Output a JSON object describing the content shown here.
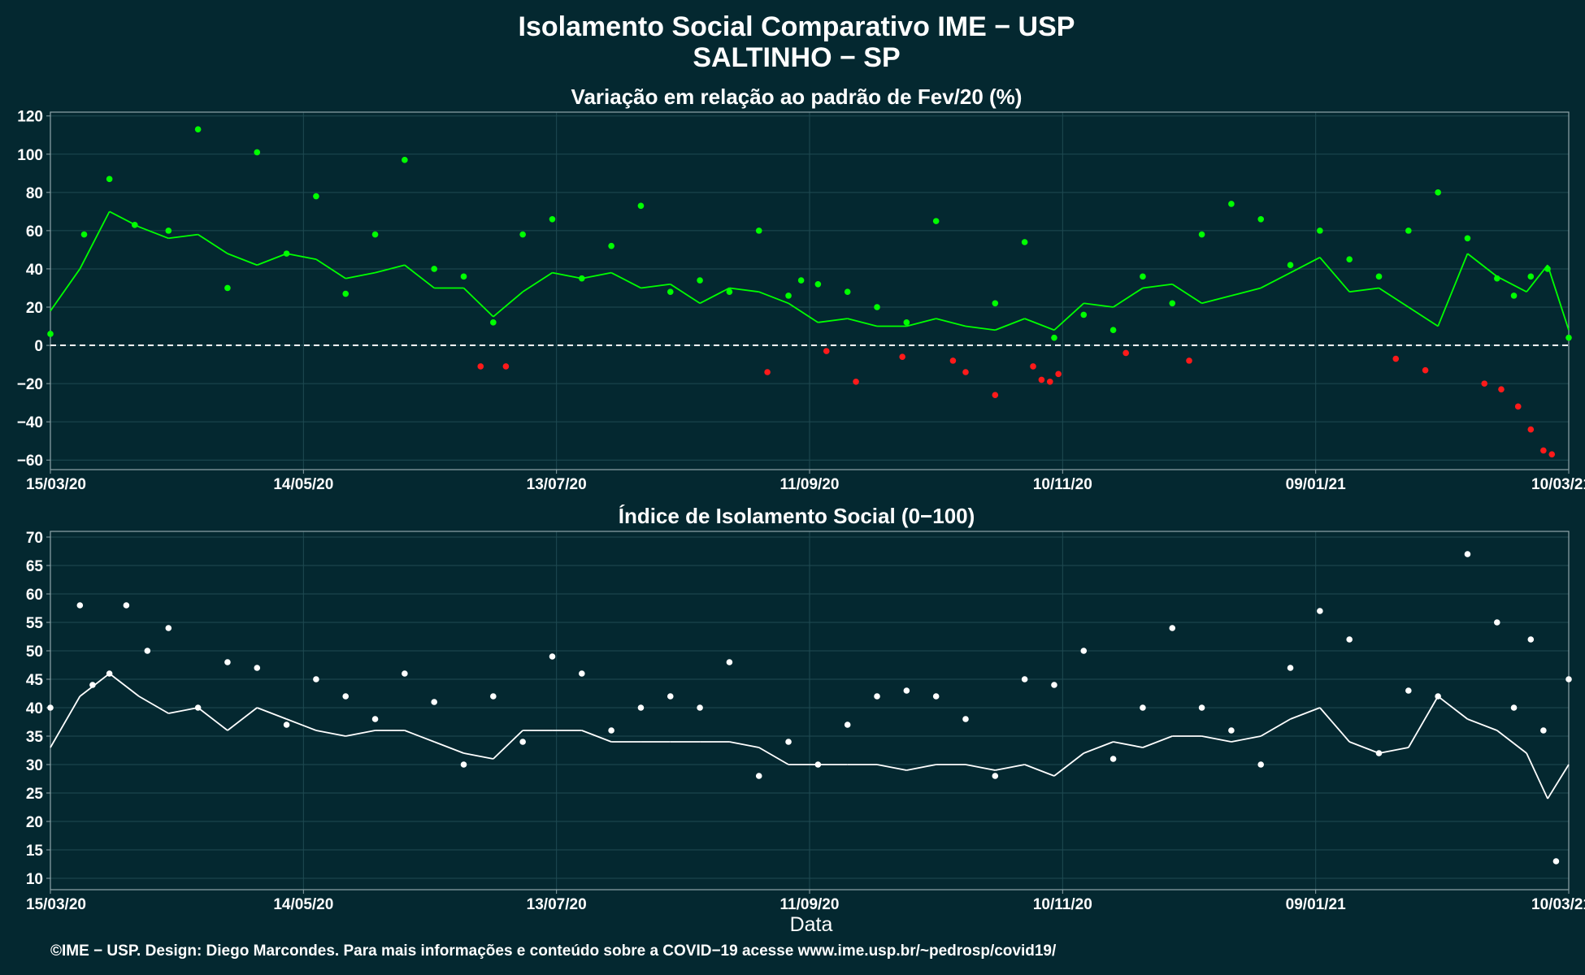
{
  "header": {
    "title_line1": "Isolamento Social Comparativo IME − USP",
    "title_line2": "SALTINHO − SP"
  },
  "footer": {
    "credit": "©IME − USP. Design: Diego Marcondes. Para mais informações e conteúdo sobre a COVID−19 acesse www.ime.usp.br/~pedrosp/covid19/"
  },
  "colors": {
    "background": "#042830",
    "grid": "#1f4a52",
    "axis": "#8fa5aa",
    "positive": "#00ff00",
    "negative": "#ff1a1a",
    "index_points": "#ffffff",
    "zero_line": "#ffffff"
  },
  "chart_data": [
    {
      "type": "scatter",
      "title": "Variação em relação ao padrão de Fev/20 (%)",
      "xlabel": "",
      "ylabel": "",
      "ylim": [
        -65,
        122
      ],
      "yticks": [
        120,
        100,
        80,
        60,
        40,
        20,
        0,
        -20,
        -40,
        -60
      ],
      "ytick_labels": [
        "120",
        "100",
        "80",
        "60",
        "40",
        "20",
        "0",
        "−20",
        "−40",
        "−60"
      ],
      "x_range": [
        "2020-03-15",
        "2021-03-10"
      ],
      "xticks": [
        "2020-03-15",
        "2020-05-14",
        "2020-07-13",
        "2020-09-11",
        "2020-11-10",
        "2021-01-09",
        "2021-03-10"
      ],
      "xtick_labels": [
        "15/03/20",
        "14/05/20",
        "13/07/20",
        "11/09/20",
        "10/11/20",
        "09/01/21",
        "10/03/21"
      ],
      "reference_line": 0,
      "grid": true,
      "legend": "none",
      "series": [
        {
          "kind": "points",
          "color_rule": "green when value >= 0, red when value < 0",
          "x": [
            "2020-03-15",
            "2020-03-23",
            "2020-03-29",
            "2020-04-04",
            "2020-04-12",
            "2020-04-19",
            "2020-04-26",
            "2020-05-03",
            "2020-05-10",
            "2020-05-17",
            "2020-05-24",
            "2020-05-31",
            "2020-06-07",
            "2020-06-14",
            "2020-06-21",
            "2020-06-28",
            "2020-07-01",
            "2020-07-05",
            "2020-07-12",
            "2020-07-19",
            "2020-07-26",
            "2020-08-02",
            "2020-08-09",
            "2020-08-16",
            "2020-08-23",
            "2020-08-30",
            "2020-09-06",
            "2020-09-09",
            "2020-09-13",
            "2020-09-20",
            "2020-09-27",
            "2020-10-04",
            "2020-10-11",
            "2020-10-18",
            "2020-10-25",
            "2020-11-01",
            "2020-11-05",
            "2020-11-08",
            "2020-11-15",
            "2020-11-22",
            "2020-11-29",
            "2020-12-06",
            "2020-12-13",
            "2020-12-20",
            "2020-12-27",
            "2021-01-03",
            "2021-01-10",
            "2021-01-17",
            "2021-01-24",
            "2021-01-31",
            "2021-02-07",
            "2021-02-14",
            "2021-02-21",
            "2021-02-25",
            "2021-03-01",
            "2021-03-05",
            "2021-03-10"
          ],
          "values": [
            6,
            58,
            87,
            63,
            60,
            113,
            30,
            101,
            48,
            78,
            27,
            58,
            97,
            40,
            36,
            12,
            -11,
            58,
            66,
            35,
            52,
            73,
            28,
            34,
            28,
            60,
            26,
            34,
            32,
            28,
            20,
            12,
            65,
            -14,
            22,
            54,
            -18,
            4,
            16,
            8,
            36,
            22,
            58,
            74,
            66,
            42,
            60,
            45,
            36,
            60,
            80,
            56,
            35,
            26,
            36,
            40,
            4
          ]
        },
        {
          "kind": "points",
          "color_rule": "negative days",
          "x": [
            "2020-06-25",
            "2020-09-01",
            "2020-09-15",
            "2020-09-22",
            "2020-10-03",
            "2020-10-15",
            "2020-10-25",
            "2020-11-03",
            "2020-11-07",
            "2020-11-09",
            "2020-11-25",
            "2020-12-10",
            "2021-01-28",
            "2021-02-04",
            "2021-02-18",
            "2021-02-22",
            "2021-02-26",
            "2021-03-01",
            "2021-03-04",
            "2021-03-06"
          ],
          "values": [
            -11,
            -14,
            -3,
            -19,
            -6,
            -8,
            -26,
            -11,
            -19,
            -15,
            -4,
            -8,
            -7,
            -13,
            -20,
            -23,
            -32,
            -44,
            -55,
            -57
          ]
        },
        {
          "kind": "line",
          "name": "",
          "x": [
            "2020-03-15",
            "2020-03-22",
            "2020-03-29",
            "2020-04-05",
            "2020-04-12",
            "2020-04-19",
            "2020-04-26",
            "2020-05-03",
            "2020-05-10",
            "2020-05-17",
            "2020-05-24",
            "2020-05-31",
            "2020-06-07",
            "2020-06-14",
            "2020-06-21",
            "2020-06-28",
            "2020-07-05",
            "2020-07-12",
            "2020-07-19",
            "2020-07-26",
            "2020-08-02",
            "2020-08-09",
            "2020-08-16",
            "2020-08-23",
            "2020-08-30",
            "2020-09-06",
            "2020-09-13",
            "2020-09-20",
            "2020-09-27",
            "2020-10-04",
            "2020-10-11",
            "2020-10-18",
            "2020-10-25",
            "2020-11-01",
            "2020-11-08",
            "2020-11-15",
            "2020-11-22",
            "2020-11-29",
            "2020-12-06",
            "2020-12-13",
            "2020-12-20",
            "2020-12-27",
            "2021-01-03",
            "2021-01-10",
            "2021-01-17",
            "2021-01-24",
            "2021-01-31",
            "2021-02-07",
            "2021-02-14",
            "2021-02-21",
            "2021-02-28",
            "2021-03-05",
            "2021-03-10"
          ],
          "values": [
            18,
            40,
            70,
            62,
            56,
            58,
            48,
            42,
            48,
            45,
            35,
            38,
            42,
            30,
            30,
            15,
            28,
            38,
            35,
            38,
            30,
            32,
            22,
            30,
            28,
            22,
            12,
            14,
            10,
            10,
            14,
            10,
            8,
            14,
            8,
            22,
            20,
            30,
            32,
            22,
            26,
            30,
            38,
            46,
            28,
            30,
            20,
            10,
            48,
            36,
            28,
            42,
            8
          ]
        }
      ]
    },
    {
      "type": "scatter",
      "title": "Índice de Isolamento Social (0−100)",
      "xlabel": "Data",
      "ylabel": "",
      "ylim": [
        8,
        71
      ],
      "yticks": [
        70,
        65,
        60,
        55,
        50,
        45,
        40,
        35,
        30,
        25,
        20,
        15,
        10
      ],
      "ytick_labels": [
        "70",
        "65",
        "60",
        "55",
        "50",
        "45",
        "40",
        "35",
        "30",
        "25",
        "20",
        "15",
        "10"
      ],
      "x_range": [
        "2020-03-15",
        "2021-03-10"
      ],
      "xticks": [
        "2020-03-15",
        "2020-05-14",
        "2020-07-13",
        "2020-09-11",
        "2020-11-10",
        "2021-01-09",
        "2021-03-10"
      ],
      "xtick_labels": [
        "15/03/20",
        "14/05/20",
        "13/07/20",
        "11/09/20",
        "10/11/20",
        "09/01/21",
        "10/03/21"
      ],
      "grid": true,
      "legend": "none",
      "series": [
        {
          "kind": "points",
          "color_rule": "white",
          "x": [
            "2020-03-15",
            "2020-03-22",
            "2020-03-25",
            "2020-03-29",
            "2020-04-02",
            "2020-04-07",
            "2020-04-12",
            "2020-04-19",
            "2020-04-26",
            "2020-05-03",
            "2020-05-10",
            "2020-05-17",
            "2020-05-24",
            "2020-05-31",
            "2020-06-07",
            "2020-06-14",
            "2020-06-21",
            "2020-06-28",
            "2020-07-05",
            "2020-07-12",
            "2020-07-19",
            "2020-07-26",
            "2020-08-02",
            "2020-08-09",
            "2020-08-16",
            "2020-08-23",
            "2020-08-30",
            "2020-09-06",
            "2020-09-13",
            "2020-09-20",
            "2020-09-27",
            "2020-10-04",
            "2020-10-11",
            "2020-10-18",
            "2020-10-25",
            "2020-11-01",
            "2020-11-08",
            "2020-11-15",
            "2020-11-22",
            "2020-11-29",
            "2020-12-06",
            "2020-12-13",
            "2020-12-20",
            "2020-12-27",
            "2021-01-03",
            "2021-01-10",
            "2021-01-17",
            "2021-01-24",
            "2021-01-31",
            "2021-02-07",
            "2021-02-14",
            "2021-02-21",
            "2021-02-25",
            "2021-03-01",
            "2021-03-04",
            "2021-03-07",
            "2021-03-10"
          ],
          "values": [
            40,
            58,
            44,
            46,
            58,
            50,
            54,
            40,
            48,
            47,
            37,
            45,
            42,
            38,
            46,
            41,
            30,
            42,
            34,
            49,
            46,
            36,
            40,
            42,
            40,
            48,
            28,
            34,
            30,
            37,
            42,
            43,
            42,
            38,
            28,
            45,
            44,
            50,
            31,
            40,
            54,
            40,
            36,
            30,
            47,
            57,
            52,
            32,
            43,
            42,
            67,
            55,
            40,
            52,
            36,
            13,
            45
          ]
        },
        {
          "kind": "line",
          "name": "",
          "x": [
            "2020-03-15",
            "2020-03-22",
            "2020-03-29",
            "2020-04-05",
            "2020-04-12",
            "2020-04-19",
            "2020-04-26",
            "2020-05-03",
            "2020-05-10",
            "2020-05-17",
            "2020-05-24",
            "2020-05-31",
            "2020-06-07",
            "2020-06-14",
            "2020-06-21",
            "2020-06-28",
            "2020-07-05",
            "2020-07-12",
            "2020-07-19",
            "2020-07-26",
            "2020-08-02",
            "2020-08-09",
            "2020-08-16",
            "2020-08-23",
            "2020-08-30",
            "2020-09-06",
            "2020-09-13",
            "2020-09-20",
            "2020-09-27",
            "2020-10-04",
            "2020-10-11",
            "2020-10-18",
            "2020-10-25",
            "2020-11-01",
            "2020-11-08",
            "2020-11-15",
            "2020-11-22",
            "2020-11-29",
            "2020-12-06",
            "2020-12-13",
            "2020-12-20",
            "2020-12-27",
            "2021-01-03",
            "2021-01-10",
            "2021-01-17",
            "2021-01-24",
            "2021-01-31",
            "2021-02-07",
            "2021-02-14",
            "2021-02-21",
            "2021-02-28",
            "2021-03-05",
            "2021-03-10"
          ],
          "values": [
            33,
            42,
            46,
            42,
            39,
            40,
            36,
            40,
            38,
            36,
            35,
            36,
            36,
            34,
            32,
            31,
            36,
            36,
            36,
            34,
            34,
            34,
            34,
            34,
            33,
            30,
            30,
            30,
            30,
            29,
            30,
            30,
            29,
            30,
            28,
            32,
            34,
            33,
            35,
            35,
            34,
            35,
            38,
            40,
            34,
            32,
            33,
            42,
            38,
            36,
            32,
            24,
            30
          ]
        }
      ]
    }
  ]
}
